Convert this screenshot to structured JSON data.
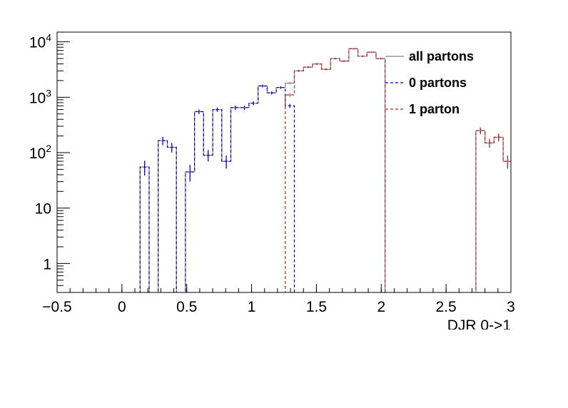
{
  "chart_data": {
    "type": "histogram",
    "xlabel": "DJR 0->1",
    "xlim": [
      -0.5,
      3.0
    ],
    "ylim": [
      0.3,
      15000
    ],
    "yscale": "log",
    "grid": false,
    "legend_position": "top-right",
    "x_ticks": [
      {
        "v": -0.5,
        "label": "−0.5"
      },
      {
        "v": 0,
        "label": "0"
      },
      {
        "v": 0.5,
        "label": "0.5"
      },
      {
        "v": 1,
        "label": "1"
      },
      {
        "v": 1.5,
        "label": "1.5"
      },
      {
        "v": 2,
        "label": "2"
      },
      {
        "v": 2.5,
        "label": "2.5"
      },
      {
        "v": 3,
        "label": "3"
      }
    ],
    "y_ticks": [
      {
        "v": 1,
        "base": "1",
        "exp": ""
      },
      {
        "v": 10,
        "base": "10",
        "exp": ""
      },
      {
        "v": 100,
        "base": "10",
        "exp": "2"
      },
      {
        "v": 1000,
        "base": "10",
        "exp": "3"
      },
      {
        "v": 10000,
        "base": "10",
        "exp": "4"
      }
    ],
    "bin_width": 0.07,
    "series": [
      {
        "name": "all partons",
        "color": "#808080",
        "style": "solid",
        "bins": [
          [
            -0.49,
            0
          ],
          [
            -0.42,
            0
          ],
          [
            -0.35,
            0
          ],
          [
            -0.28,
            0
          ],
          [
            -0.21,
            0
          ],
          [
            -0.14,
            0
          ],
          [
            -0.07,
            0
          ],
          [
            0.0,
            0
          ],
          [
            0.07,
            0
          ],
          [
            0.14,
            55
          ],
          [
            0.21,
            0
          ],
          [
            0.28,
            165
          ],
          [
            0.35,
            125
          ],
          [
            0.42,
            0
          ],
          [
            0.49,
            45
          ],
          [
            0.56,
            550
          ],
          [
            0.63,
            90
          ],
          [
            0.7,
            600
          ],
          [
            0.77,
            70
          ],
          [
            0.84,
            650
          ],
          [
            0.91,
            650
          ],
          [
            0.98,
            780
          ],
          [
            1.05,
            1600
          ],
          [
            1.12,
            1200
          ],
          [
            1.19,
            1500
          ],
          [
            1.26,
            1800
          ],
          [
            1.33,
            3000
          ],
          [
            1.4,
            3500
          ],
          [
            1.47,
            4000
          ],
          [
            1.54,
            3200
          ],
          [
            1.61,
            5000
          ],
          [
            1.68,
            4500
          ],
          [
            1.75,
            7500
          ],
          [
            1.82,
            5500
          ],
          [
            1.89,
            6500
          ],
          [
            1.96,
            5000
          ],
          [
            2.03,
            0
          ],
          [
            2.1,
            0
          ],
          [
            2.17,
            0
          ],
          [
            2.24,
            0
          ],
          [
            2.31,
            0
          ],
          [
            2.38,
            0
          ],
          [
            2.45,
            0
          ],
          [
            2.52,
            0
          ],
          [
            2.59,
            0
          ],
          [
            2.66,
            0
          ],
          [
            2.73,
            250
          ],
          [
            2.8,
            150
          ],
          [
            2.87,
            190
          ],
          [
            2.94,
            70
          ]
        ]
      },
      {
        "name": "0 partons",
        "color": "#0000cc",
        "style": "dashed",
        "bins": [
          [
            -0.49,
            0
          ],
          [
            -0.42,
            0
          ],
          [
            -0.35,
            0
          ],
          [
            -0.28,
            0
          ],
          [
            -0.21,
            0
          ],
          [
            -0.14,
            0
          ],
          [
            -0.07,
            0
          ],
          [
            0.0,
            0
          ],
          [
            0.07,
            0
          ],
          [
            0.14,
            55
          ],
          [
            0.21,
            0
          ],
          [
            0.28,
            165
          ],
          [
            0.35,
            125
          ],
          [
            0.42,
            0
          ],
          [
            0.49,
            45
          ],
          [
            0.56,
            550
          ],
          [
            0.63,
            90
          ],
          [
            0.7,
            600
          ],
          [
            0.77,
            70
          ],
          [
            0.84,
            650
          ],
          [
            0.91,
            650
          ],
          [
            0.98,
            780
          ],
          [
            1.05,
            1600
          ],
          [
            1.12,
            1200
          ],
          [
            1.19,
            1500
          ],
          [
            1.26,
            700
          ],
          [
            1.33,
            0
          ]
        ]
      },
      {
        "name": "1 parton",
        "color": "#b22222",
        "style": "dashed",
        "bins": [
          [
            -0.49,
            0
          ],
          [
            -0.42,
            0
          ],
          [
            -0.35,
            0
          ],
          [
            -0.28,
            0
          ],
          [
            -0.21,
            0
          ],
          [
            -0.14,
            0
          ],
          [
            -0.07,
            0
          ],
          [
            0.0,
            0
          ],
          [
            0.07,
            0
          ],
          [
            0.14,
            0
          ],
          [
            0.21,
            0
          ],
          [
            0.28,
            0
          ],
          [
            0.35,
            0
          ],
          [
            0.42,
            0
          ],
          [
            0.49,
            0
          ],
          [
            0.56,
            0
          ],
          [
            0.63,
            0
          ],
          [
            0.7,
            0
          ],
          [
            0.77,
            0
          ],
          [
            0.84,
            0
          ],
          [
            0.91,
            0
          ],
          [
            0.98,
            0
          ],
          [
            1.05,
            0
          ],
          [
            1.12,
            0
          ],
          [
            1.19,
            0
          ],
          [
            1.26,
            1100
          ],
          [
            1.33,
            3000
          ],
          [
            1.4,
            3500
          ],
          [
            1.47,
            4000
          ],
          [
            1.54,
            3200
          ],
          [
            1.61,
            5000
          ],
          [
            1.68,
            4500
          ],
          [
            1.75,
            7500
          ],
          [
            1.82,
            5500
          ],
          [
            1.89,
            6500
          ],
          [
            1.96,
            5000
          ],
          [
            2.03,
            0
          ],
          [
            2.1,
            0
          ],
          [
            2.17,
            0
          ],
          [
            2.24,
            0
          ],
          [
            2.31,
            0
          ],
          [
            2.38,
            0
          ],
          [
            2.45,
            0
          ],
          [
            2.52,
            0
          ],
          [
            2.59,
            0
          ],
          [
            2.66,
            0
          ],
          [
            2.73,
            250
          ],
          [
            2.8,
            150
          ],
          [
            2.87,
            190
          ],
          [
            2.94,
            70
          ]
        ]
      }
    ],
    "legend": [
      {
        "label": "all partons",
        "color": "#808080",
        "style": "solid"
      },
      {
        "label": "0 partons",
        "color": "#0000cc",
        "style": "dashed"
      },
      {
        "label": "1 parton",
        "color": "#b22222",
        "style": "dashed"
      }
    ]
  }
}
